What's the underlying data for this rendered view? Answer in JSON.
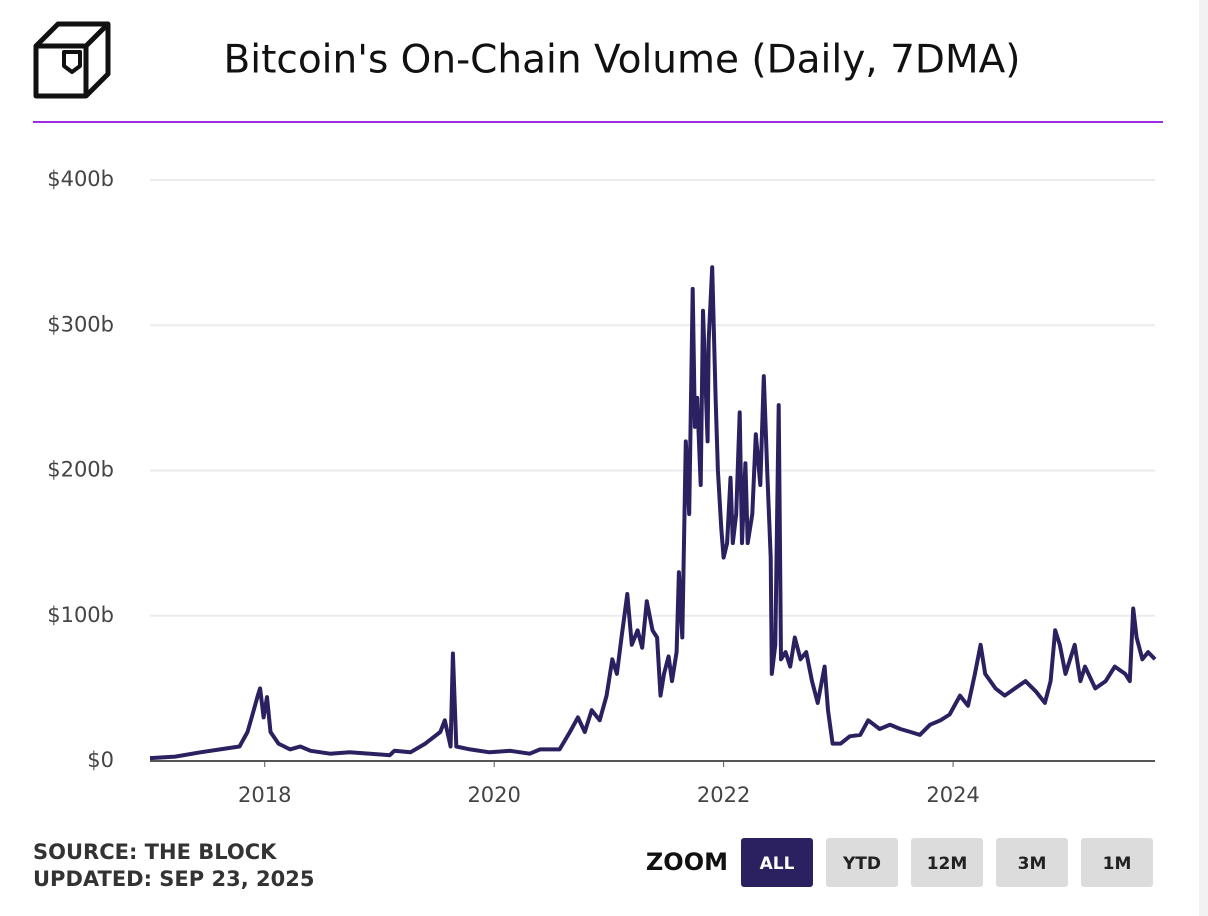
{
  "chart_data": {
    "type": "line",
    "title": "Bitcoin's On-Chain Volume (Daily, 7DMA)",
    "xlim": [
      2017.0,
      2025.76
    ],
    "xticks": [
      2018,
      2020,
      2022,
      2024
    ],
    "ylim": [
      0,
      400
    ],
    "yticks": [
      {
        "value": 0,
        "label": "$0"
      },
      {
        "value": 100,
        "label": "$100b"
      },
      {
        "value": 200,
        "label": "$200b"
      },
      {
        "value": 300,
        "label": "$300b"
      },
      {
        "value": 400,
        "label": "$400b"
      }
    ],
    "grid": true,
    "x": [
      2017.0,
      2017.22,
      2017.44,
      2017.61,
      2017.78,
      2017.85,
      2017.89,
      2017.94,
      2017.96,
      2017.99,
      2018.02,
      2018.05,
      2018.12,
      2018.22,
      2018.31,
      2018.4,
      2018.57,
      2018.74,
      2018.92,
      2019.09,
      2019.13,
      2019.27,
      2019.4,
      2019.53,
      2019.57,
      2019.62,
      2019.64,
      2019.67,
      2019.79,
      2019.96,
      2020.14,
      2020.31,
      2020.4,
      2020.57,
      2020.66,
      2020.73,
      2020.79,
      2020.85,
      2020.92,
      2020.98,
      2021.03,
      2021.07,
      2021.11,
      2021.16,
      2021.2,
      2021.25,
      2021.29,
      2021.33,
      2021.38,
      2021.42,
      2021.45,
      2021.48,
      2021.52,
      2021.55,
      2021.59,
      2021.61,
      2021.64,
      2021.67,
      2021.7,
      2021.73,
      2021.75,
      2021.77,
      2021.8,
      2021.82,
      2021.86,
      2021.87,
      2021.9,
      2021.93,
      2021.95,
      2021.98,
      2022.0,
      2022.03,
      2022.06,
      2022.08,
      2022.11,
      2022.14,
      2022.16,
      2022.19,
      2022.21,
      2022.25,
      2022.28,
      2022.32,
      2022.35,
      2022.38,
      2022.41,
      2022.42,
      2022.45,
      2022.48,
      2022.5,
      2022.54,
      2022.58,
      2022.62,
      2022.67,
      2022.72,
      2022.77,
      2022.82,
      2022.88,
      2022.91,
      2022.95,
      2023.02,
      2023.1,
      2023.19,
      2023.26,
      2023.36,
      2023.45,
      2023.54,
      2023.63,
      2023.71,
      2023.8,
      2023.89,
      2023.97,
      2024.06,
      2024.13,
      2024.19,
      2024.24,
      2024.28,
      2024.37,
      2024.45,
      2024.54,
      2024.63,
      2024.72,
      2024.8,
      2024.85,
      2024.89,
      2024.93,
      2024.98,
      2025.02,
      2025.06,
      2025.11,
      2025.15,
      2025.24,
      2025.33,
      2025.41,
      2025.5,
      2025.54,
      2025.57,
      2025.6,
      2025.65,
      2025.7,
      2025.76
    ],
    "series": [
      {
        "name": "On-Chain Volume",
        "color": "#2b2160",
        "values": [
          2,
          3,
          6,
          8,
          10,
          20,
          31,
          45,
          50,
          30,
          44,
          20,
          12,
          8,
          10,
          7,
          5,
          6,
          5,
          4,
          7,
          6,
          12,
          20,
          28,
          10,
          74,
          10,
          8,
          6,
          7,
          5,
          8,
          8,
          20,
          30,
          20,
          35,
          28,
          45,
          70,
          60,
          85,
          115,
          80,
          90,
          78,
          110,
          90,
          85,
          45,
          60,
          72,
          55,
          75,
          130,
          85,
          220,
          170,
          325,
          230,
          250,
          190,
          310,
          220,
          290,
          340,
          250,
          200,
          160,
          140,
          150,
          195,
          150,
          170,
          240,
          150,
          205,
          150,
          170,
          225,
          190,
          265,
          200,
          140,
          60,
          80,
          245,
          70,
          75,
          65,
          85,
          70,
          75,
          55,
          40,
          65,
          35,
          12,
          12,
          17,
          18,
          28,
          22,
          25,
          22,
          20,
          18,
          25,
          28,
          32,
          45,
          38,
          60,
          80,
          60,
          50,
          45,
          50,
          55,
          48,
          40,
          55,
          90,
          80,
          60,
          70,
          80,
          55,
          65,
          50,
          55,
          65,
          60,
          55,
          105,
          85,
          70,
          75,
          70
        ]
      }
    ]
  },
  "footer": {
    "source": "SOURCE: THE BLOCK",
    "updated": "UPDATED: SEP 23, 2025"
  },
  "zoom": {
    "label": "ZOOM",
    "buttons": [
      "ALL",
      "YTD",
      "12M",
      "3M",
      "1M"
    ],
    "active": "ALL"
  }
}
